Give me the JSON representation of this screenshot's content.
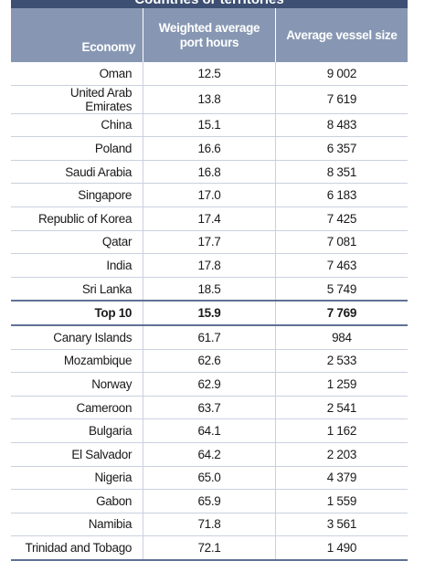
{
  "header": {
    "title": "Countries or territories"
  },
  "table": {
    "columns": [
      "Economy",
      "Weighted average port hours",
      "Average vessel size"
    ],
    "rows": [
      [
        "Oman",
        "12.5",
        "9 002"
      ],
      [
        "United Arab Emirates",
        "13.8",
        "7 619"
      ],
      [
        "China",
        "15.1",
        "8 483"
      ],
      [
        "Poland",
        "16.6",
        "6 357"
      ],
      [
        "Saudi Arabia",
        "16.8",
        "8 351"
      ],
      [
        "Singapore",
        "17.0",
        "6 183"
      ],
      [
        "Republic of Korea",
        "17.4",
        "7 425"
      ],
      [
        "Qatar",
        "17.7",
        "7 081"
      ],
      [
        "India",
        "17.8",
        "7 463"
      ],
      [
        "Sri Lanka",
        "18.5",
        "5 749"
      ],
      [
        "Top 10",
        "15.9",
        "7 769"
      ],
      [
        "Canary Islands",
        "61.7",
        "984"
      ],
      [
        "Mozambique",
        "62.6",
        "2 533"
      ],
      [
        "Norway",
        "62.9",
        "1 259"
      ],
      [
        "Cameroon",
        "63.7",
        "2 541"
      ],
      [
        "Bulgaria",
        "64.1",
        "1 162"
      ],
      [
        "El Salvador",
        "64.2",
        "2 203"
      ],
      [
        "Nigeria",
        "65.0",
        "4 379"
      ],
      [
        "Gabon",
        "65.9",
        "1 559"
      ],
      [
        "Namibia",
        "71.8",
        "3 561"
      ],
      [
        "Trinidad and Tobago",
        "72.1",
        "1 490"
      ]
    ]
  }
}
